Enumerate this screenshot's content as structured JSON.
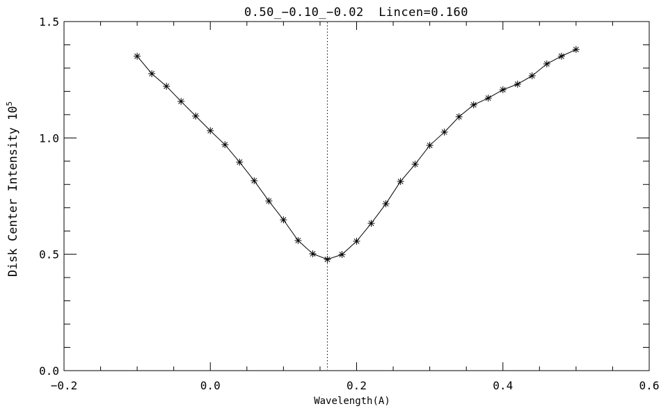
{
  "chart_data": {
    "type": "line",
    "title": "0.50_−0.10_−0.02  Lincen=0.160",
    "xlabel": "Wavelength(A)",
    "ylabel": "Disk Center Intensity 10",
    "ylabel_exponent": "5",
    "xlim": [
      -0.2,
      0.6
    ],
    "ylim": [
      0.0,
      1.5
    ],
    "x_major_ticks": [
      -0.2,
      0.0,
      0.2,
      0.4,
      0.6
    ],
    "x_tick_labels": [
      "−0.2",
      "0.0",
      "0.2",
      "0.4",
      "0.6"
    ],
    "x_minor_interval": 0.05,
    "y_major_ticks": [
      0.0,
      0.5,
      1.0,
      1.5
    ],
    "y_tick_labels": [
      "0.0",
      "0.5",
      "1.0",
      "1.5"
    ],
    "y_minor_interval": 0.1,
    "grid": false,
    "legend": "none",
    "marker": "asterisk",
    "line_color": "#000000",
    "background_color": "#ffffff",
    "vline": {
      "x": 0.16,
      "style": "dotted",
      "meaning": "Lincen=0.160"
    },
    "x": [
      -0.1,
      -0.08,
      -0.06,
      -0.04,
      -0.02,
      0.0,
      0.02,
      0.04,
      0.06,
      0.08,
      0.1,
      0.12,
      0.14,
      0.16,
      0.18,
      0.2,
      0.22,
      0.24,
      0.26,
      0.28,
      0.3,
      0.32,
      0.34,
      0.36,
      0.38,
      0.4,
      0.42,
      0.44,
      0.46,
      0.48,
      0.5
    ],
    "y": [
      1.351,
      1.276,
      1.222,
      1.157,
      1.094,
      1.031,
      0.971,
      0.896,
      0.816,
      0.729,
      0.648,
      0.559,
      0.502,
      0.478,
      0.499,
      0.556,
      0.633,
      0.717,
      0.813,
      0.887,
      0.968,
      1.025,
      1.091,
      1.142,
      1.171,
      1.207,
      1.231,
      1.267,
      1.318,
      1.351,
      1.38
    ]
  }
}
